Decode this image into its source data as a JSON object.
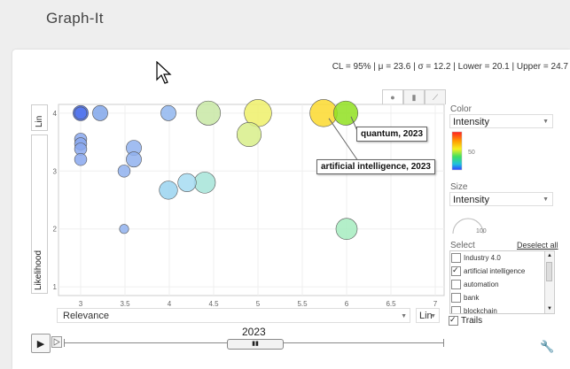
{
  "app": {
    "title": "Graph-It"
  },
  "stats": "CL = 95% | μ = 23.6 | σ = 12.2 | Lower = 20.1 | Upper = 24.7",
  "y_axis": {
    "scale_selector": "Lin",
    "variable": "Likelihood"
  },
  "x_axis": {
    "variable": "Relevance",
    "scale_selector": "Lin"
  },
  "chart_tabs": [
    {
      "name": "bubble-tab",
      "icon": "bubble-chart-icon",
      "glyph": "●",
      "active": true
    },
    {
      "name": "bar-tab",
      "icon": "bar-chart-icon",
      "glyph": "▮",
      "active": false
    },
    {
      "name": "line-tab",
      "icon": "line-chart-icon",
      "glyph": "⟋",
      "active": false
    }
  ],
  "chart_data": {
    "type": "scatter",
    "title": "",
    "xlabel": "Relevance",
    "ylabel": "Likelihood",
    "xlim": [
      2.75,
      7.1
    ],
    "ylim": [
      0.85,
      4.15
    ],
    "x_ticks": [
      "3",
      "3.5",
      "4",
      "4.5",
      "5",
      "5.5",
      "6",
      "6.5",
      "7"
    ],
    "y_ticks": [
      "1",
      "2",
      "3",
      "4"
    ],
    "grid": true,
    "points": [
      {
        "x": 3.0,
        "y": 4.0,
        "size": 3,
        "color": "#3f66e6"
      },
      {
        "x": 3.0,
        "y": 4.0,
        "size": 2,
        "color": "#5577ee"
      },
      {
        "x": 3.22,
        "y": 4.0,
        "size": 3,
        "color": "#80a6ea"
      },
      {
        "x": 3.0,
        "y": 3.55,
        "size": 2,
        "color": "#8aa8ee"
      },
      {
        "x": 3.0,
        "y": 3.47,
        "size": 2,
        "color": "#8aa8ee"
      },
      {
        "x": 3.0,
        "y": 3.38,
        "size": 2,
        "color": "#8aa8ee"
      },
      {
        "x": 3.0,
        "y": 3.2,
        "size": 2,
        "color": "#8aa8ee"
      },
      {
        "x": 3.6,
        "y": 3.4,
        "size": 3,
        "color": "#90b2ee"
      },
      {
        "x": 3.6,
        "y": 3.2,
        "size": 3,
        "color": "#90b2ee"
      },
      {
        "x": 3.49,
        "y": 3.0,
        "size": 2,
        "color": "#90b2ee"
      },
      {
        "x": 3.49,
        "y": 2.0,
        "size": 1,
        "color": "#90b2ee"
      },
      {
        "x": 3.99,
        "y": 4.0,
        "size": 3,
        "color": "#90b6ee"
      },
      {
        "x": 3.99,
        "y": 2.67,
        "size": 4,
        "color": "#9ad4f0"
      },
      {
        "x": 4.2,
        "y": 2.8,
        "size": 4,
        "color": "#a6dcf2"
      },
      {
        "x": 4.4,
        "y": 2.8,
        "size": 5,
        "color": "#a6e4d8"
      },
      {
        "x": 4.44,
        "y": 4.0,
        "size": 6,
        "color": "#c8e8a4"
      },
      {
        "x": 4.9,
        "y": 3.63,
        "size": 6,
        "color": "#d8ee8a"
      },
      {
        "x": 5.0,
        "y": 4.0,
        "size": 7,
        "color": "#eef06a"
      },
      {
        "x": 6.0,
        "y": 2.0,
        "size": 5,
        "color": "#a6ecc0"
      },
      {
        "x": 5.74,
        "y": 4.0,
        "size": 7,
        "color": "#fbd92e"
      },
      {
        "x": 5.99,
        "y": 4.0,
        "size": 6,
        "color": "#90e020"
      }
    ]
  },
  "tooltips": [
    {
      "name": "tooltip-quantum",
      "text": "quantum, 2023"
    },
    {
      "name": "tooltip-artificial-intelligence",
      "text": "artificial intelligence, 2023"
    }
  ],
  "sidebar": {
    "color": {
      "label": "Color",
      "value": "Intensity",
      "legend_tick": "50"
    },
    "size": {
      "label": "Size",
      "value": "Intensity",
      "legend_tick": "100"
    },
    "select": {
      "label": "Select",
      "deselect_all": "Deselect all",
      "items": [
        {
          "label": "Industry 4.0",
          "checked": false
        },
        {
          "label": "artificial intelligence",
          "checked": true
        },
        {
          "label": "automation",
          "checked": false
        },
        {
          "label": "bank",
          "checked": false
        },
        {
          "label": "blockchain",
          "checked": false
        }
      ]
    },
    "trails": {
      "label": "Trails",
      "checked": true
    }
  },
  "timeline": {
    "year": "2023",
    "thumb_glyph": "▮▮"
  },
  "colors": {
    "accent": "#ffd400",
    "panel_bg": "#ffffff",
    "page_bg": "#eeeeee"
  }
}
